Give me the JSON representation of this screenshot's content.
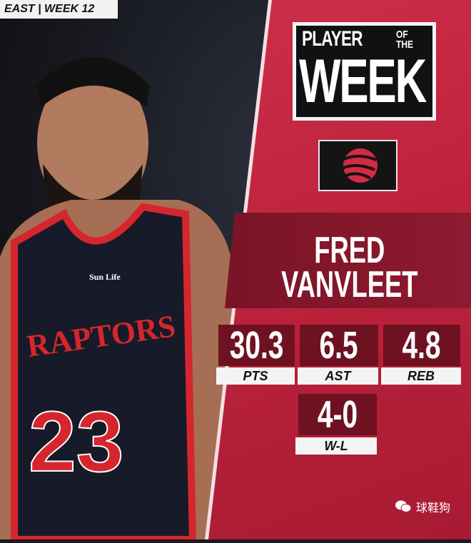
{
  "tag": "EAST | WEEK 12",
  "title": {
    "line1": "PLAYER",
    "of_the_1": "OF",
    "of_the_2": "THE",
    "line2": "WEEK"
  },
  "team_logo": "raptors-basketball-logo",
  "player": {
    "first": "FRED",
    "last": "VANVLEET",
    "jersey_number": "23",
    "jersey_text": "RAPTORS",
    "sponsor": "Sun Life"
  },
  "stats": [
    {
      "value": "30.3",
      "label": "PTS"
    },
    {
      "value": "6.5",
      "label": "AST"
    },
    {
      "value": "4.8",
      "label": "REB"
    },
    {
      "value": "4-0",
      "label": "W-L"
    }
  ],
  "watermark": "球鞋狗",
  "colors": {
    "red": "#c0243e",
    "dark_red": "#6e1222",
    "black": "#111111"
  }
}
